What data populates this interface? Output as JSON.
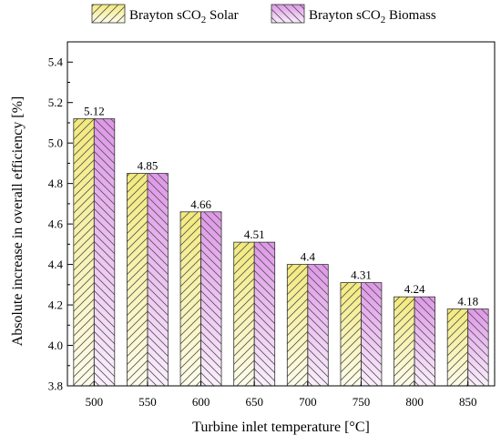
{
  "chart_data": {
    "type": "bar",
    "title": "",
    "xlabel": "Turbine inlet temperature [°C]",
    "ylabel": "Absolute increase in overall efficiency [%]",
    "categories": [
      "500",
      "550",
      "600",
      "650",
      "700",
      "750",
      "800",
      "850"
    ],
    "series": [
      {
        "name": "Brayton sCO2 Solar",
        "legend_prefix": "Brayton sCO",
        "legend_sub": "2",
        "legend_suffix": " Solar",
        "color": "#f5ee8e",
        "values": [
          5.12,
          4.85,
          4.66,
          4.51,
          4.4,
          4.31,
          4.24,
          4.18
        ]
      },
      {
        "name": "Brayton sCO2 Biomass",
        "legend_prefix": "Brayton sCO",
        "legend_sub": "2",
        "legend_suffix": " Biomass",
        "color": "#e3a3ea",
        "values": [
          5.12,
          4.85,
          4.66,
          4.51,
          4.4,
          4.31,
          4.24,
          4.18
        ]
      }
    ],
    "data_labels": [
      "5.12",
      "4.85",
      "4.66",
      "4.51",
      "4.4",
      "4.31",
      "4.24",
      "4.18"
    ],
    "ylim": [
      3.8,
      5.5
    ],
    "yticks": [
      "3.8",
      "4.0",
      "4.2",
      "4.4",
      "4.6",
      "4.8",
      "5.0",
      "5.2",
      "5.4"
    ],
    "grid": false,
    "legend_position": "top-outside",
    "bar_pattern": "diagonal-hatch"
  }
}
